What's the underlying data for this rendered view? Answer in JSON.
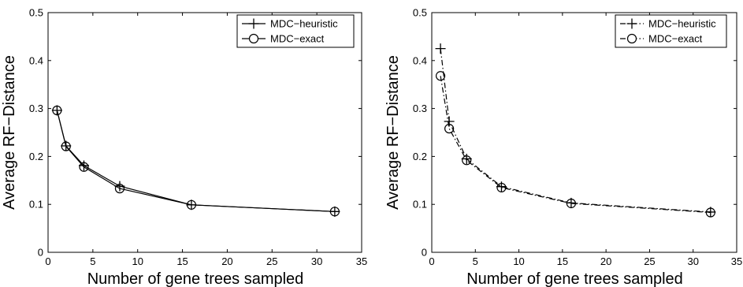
{
  "chart_data": [
    {
      "type": "line",
      "xlabel": "Number of gene trees sampled",
      "ylabel": "Average RF−Distance",
      "xlim": [
        0,
        35
      ],
      "ylim": [
        0,
        0.5
      ],
      "xticks": [
        "0",
        "5",
        "10",
        "15",
        "20",
        "25",
        "30",
        "35"
      ],
      "yticks": [
        "0",
        "0.1",
        "0.2",
        "0.3",
        "0.4",
        "0.5"
      ],
      "legend_position": "top-right",
      "series": [
        {
          "name": "MDC−heuristic",
          "marker": "plus",
          "linestyle": "solid",
          "x": [
            1,
            2,
            4,
            8,
            16,
            32
          ],
          "y": [
            0.296,
            0.222,
            0.181,
            0.138,
            0.099,
            0.085
          ]
        },
        {
          "name": "MDC−exact",
          "marker": "circle",
          "linestyle": "solid",
          "x": [
            1,
            2,
            4,
            8,
            16,
            32
          ],
          "y": [
            0.296,
            0.221,
            0.178,
            0.133,
            0.099,
            0.085
          ]
        }
      ]
    },
    {
      "type": "line",
      "xlabel": "Number of gene trees sampled",
      "ylabel": "Average RF−Distance",
      "xlim": [
        0,
        35
      ],
      "ylim": [
        0,
        0.5
      ],
      "xticks": [
        "0",
        "5",
        "10",
        "15",
        "20",
        "25",
        "30",
        "35"
      ],
      "yticks": [
        "0",
        "0.1",
        "0.2",
        "0.3",
        "0.4",
        "0.5"
      ],
      "legend_position": "top-right",
      "series": [
        {
          "name": "MDC−heuristic",
          "marker": "plus",
          "linestyle": "dashdot",
          "x": [
            1,
            2,
            4,
            8,
            16,
            32
          ],
          "y": [
            0.425,
            0.273,
            0.195,
            0.137,
            0.103,
            0.084
          ]
        },
        {
          "name": "MDC−exact",
          "marker": "circle",
          "linestyle": "dashdot",
          "x": [
            1,
            2,
            4,
            8,
            16,
            32
          ],
          "y": [
            0.368,
            0.258,
            0.192,
            0.135,
            0.102,
            0.083
          ]
        }
      ]
    }
  ]
}
